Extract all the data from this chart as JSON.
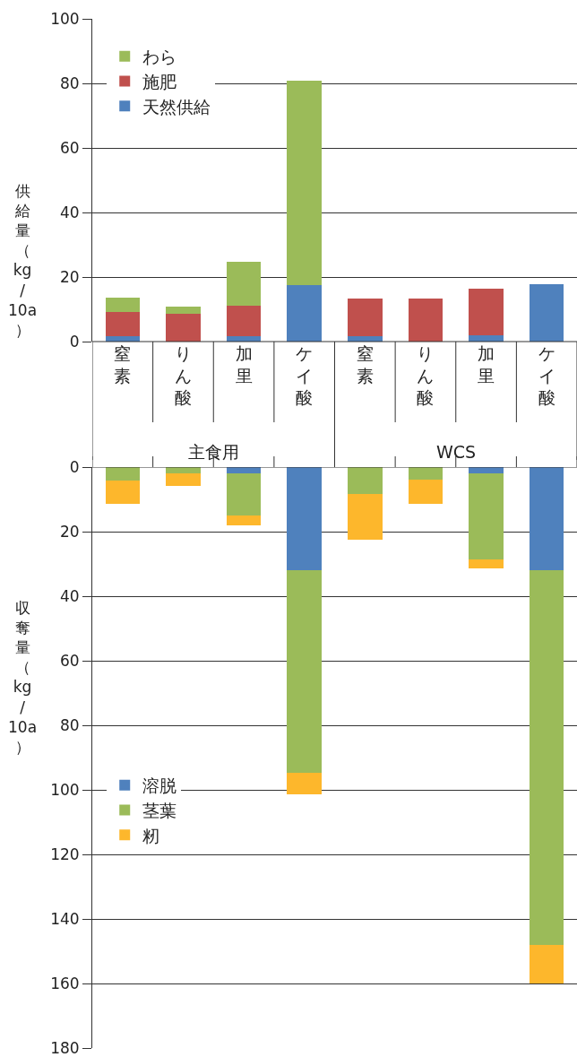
{
  "chart_data": [
    {
      "type": "bar",
      "stacked": true,
      "ylabel": "供給量（kg/10a）",
      "categories": [
        "窒素",
        "りん酸",
        "加里",
        "ケイ酸",
        "窒素",
        "りん酸",
        "加里",
        "ケイ酸"
      ],
      "annotations": [
        "主食用",
        "WCS"
      ],
      "series": [
        {
          "name": "天然供給",
          "color": "#4f81bd",
          "values": [
            1.7,
            0,
            1.7,
            17.5,
            1.7,
            0,
            2.0,
            17.8
          ]
        },
        {
          "name": "施肥",
          "color": "#c0504d",
          "values": [
            7.5,
            8.6,
            9.4,
            0,
            11.6,
            13.3,
            14.4,
            0
          ]
        },
        {
          "name": "わら",
          "color": "#9bbb59",
          "values": [
            4.4,
            2.2,
            13.6,
            63.3,
            0,
            0,
            0,
            0
          ]
        }
      ],
      "ylim": [
        0,
        100
      ],
      "yticks": [
        0,
        20,
        40,
        60,
        80,
        100
      ],
      "grid": "y",
      "legend": "top left"
    },
    {
      "type": "bar",
      "stacked": true,
      "ylabel": "収奪量（kg/10a）",
      "categories": [
        "窒素",
        "りん酸",
        "加里",
        "ケイ酸",
        "窒素",
        "りん酸",
        "加里",
        "ケイ酸"
      ],
      "series": [
        {
          "name": "溶脱",
          "color": "#4f81bd",
          "values": [
            0,
            0,
            1.9,
            32,
            0,
            0,
            1.9,
            32
          ]
        },
        {
          "name": "茎葉",
          "color": "#9bbb59",
          "values": [
            4.2,
            1.9,
            13.1,
            62.7,
            8.3,
            3.9,
            26.7,
            116
          ]
        },
        {
          "name": "籾",
          "color": "#fdb72c",
          "values": [
            7.2,
            3.9,
            3.1,
            6.7,
            14.2,
            7.5,
            2.8,
            12
          ]
        }
      ],
      "ylim": [
        180,
        0
      ],
      "yticks": [
        0,
        20,
        40,
        60,
        80,
        100,
        120,
        140,
        160,
        180
      ],
      "grid": "y",
      "legend": "bottom left",
      "tick_labels": "y"
    }
  ]
}
